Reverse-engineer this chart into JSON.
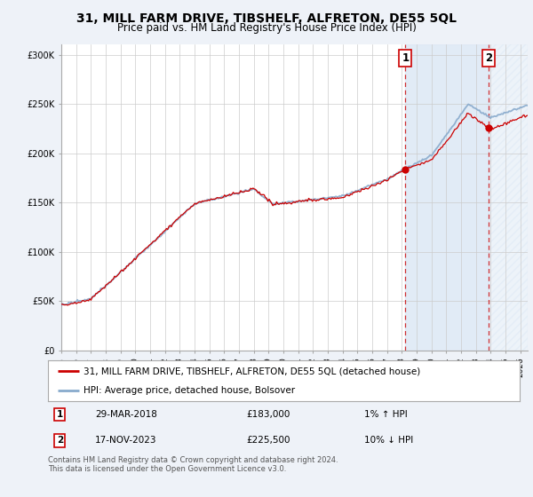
{
  "title": "31, MILL FARM DRIVE, TIBSHELF, ALFRETON, DE55 5QL",
  "subtitle": "Price paid vs. HM Land Registry's House Price Index (HPI)",
  "ylabel_ticks": [
    "£0",
    "£50K",
    "£100K",
    "£150K",
    "£200K",
    "£250K",
    "£300K"
  ],
  "ytick_vals": [
    0,
    50000,
    100000,
    150000,
    200000,
    250000,
    300000
  ],
  "ylim": [
    0,
    310000
  ],
  "xlim_start": 1995.0,
  "xlim_end": 2026.5,
  "legend_label_red": "31, MILL FARM DRIVE, TIBSHELF, ALFRETON, DE55 5QL (detached house)",
  "legend_label_blue": "HPI: Average price, detached house, Bolsover",
  "point1_date": "29-MAR-2018",
  "point1_price": "£183,000",
  "point1_hpi": "1% ↑ HPI",
  "point1_x": 2018.24,
  "point1_y": 183000,
  "point2_date": "17-NOV-2023",
  "point2_price": "£225,500",
  "point2_hpi": "10% ↓ HPI",
  "point2_x": 2023.88,
  "point2_y": 225500,
  "vline1_x": 2018.24,
  "vline2_x": 2023.88,
  "footer": "Contains HM Land Registry data © Crown copyright and database right 2024.\nThis data is licensed under the Open Government Licence v3.0.",
  "bg_color": "#eef2f8",
  "plot_bg_color": "#ffffff",
  "red_color": "#cc0000",
  "blue_color": "#88aacc",
  "shade_color": "#dce8f5",
  "grid_color": "#cccccc",
  "title_fontsize": 10,
  "subtitle_fontsize": 8.5,
  "tick_fontsize": 7,
  "legend_fontsize": 7.5,
  "footer_fontsize": 6
}
